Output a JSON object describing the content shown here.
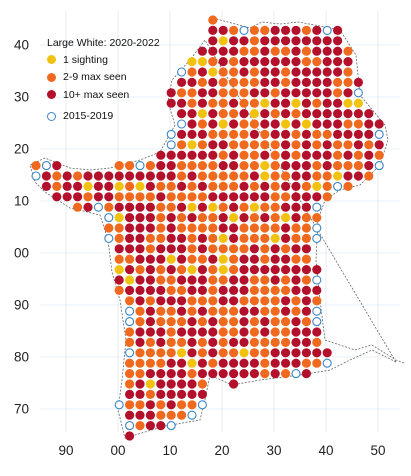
{
  "legend": {
    "title": "Large White:  2020-2022",
    "items": [
      {
        "label": "1 sighting",
        "color": "#f2c211",
        "style": "filled"
      },
      {
        "label": "2-9 max seen",
        "color": "#ef6a1e",
        "style": "filled"
      },
      {
        "label": "10+ max seen",
        "color": "#b3102c",
        "style": "filled"
      },
      {
        "label": "2015-2019",
        "color": "#3b86c6",
        "style": "open"
      }
    ]
  },
  "axes": {
    "y_ticks": [
      "40",
      "30",
      "20",
      "10",
      "00",
      "90",
      "80",
      "70"
    ],
    "x_ticks": [
      "90",
      "00",
      "10",
      "20",
      "30",
      "40",
      "50"
    ]
  },
  "colors": {
    "one": "#f2c211",
    "few": "#ef6a1e",
    "many": "#b3102c",
    "prior": "#3b86c6",
    "grid": "#d8e1ea",
    "coast": "#666666"
  }
}
